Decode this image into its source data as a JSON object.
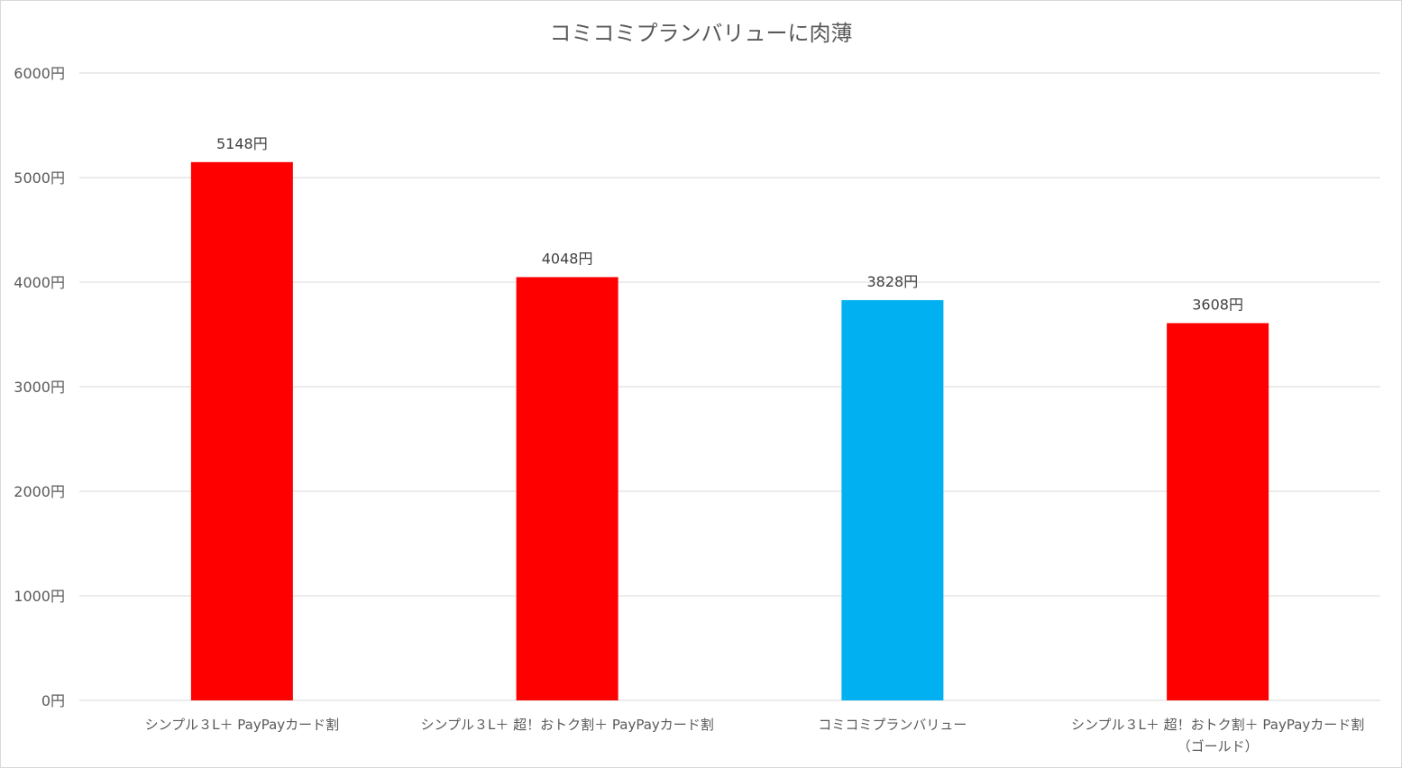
{
  "chart_data": {
    "type": "bar",
    "title": "コミコミプランバリューに肉薄",
    "xlabel": "",
    "ylabel": "",
    "ylim": [
      0,
      6000
    ],
    "y_ticks": [
      0,
      1000,
      2000,
      3000,
      4000,
      5000,
      6000
    ],
    "y_tick_suffix": "円",
    "grid": true,
    "legend": "none",
    "categories": [
      [
        "シンプル３L＋ PayPayカード割"
      ],
      [
        "シンプル３L＋ 超！おトク割＋ PayPayカード割"
      ],
      [
        "コミコミプランバリュー"
      ],
      [
        "シンプル３L＋ 超！おトク割＋ PayPayカード割",
        "（ゴールド）"
      ]
    ],
    "values": [
      5148,
      4048,
      3828,
      3608
    ],
    "data_labels": [
      "5148円",
      "4048円",
      "3828円",
      "3608円"
    ],
    "bar_colors": [
      "#ff0000",
      "#ff0000",
      "#00b0f0",
      "#ff0000"
    ],
    "grid_color": "#d9d9d9",
    "text_color": "#595959",
    "label_color": "#404040"
  }
}
